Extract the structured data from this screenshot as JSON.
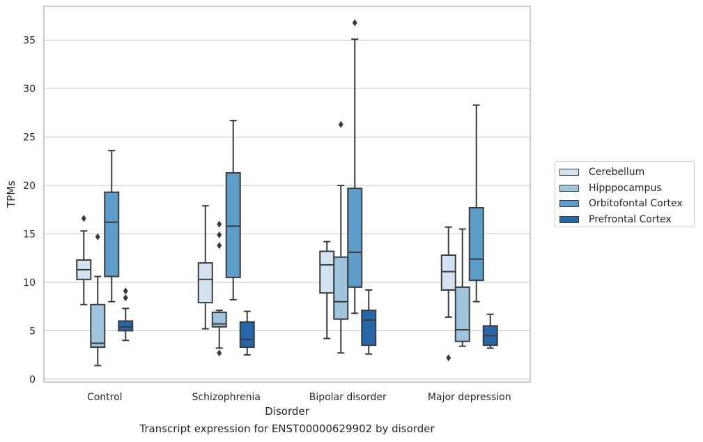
{
  "caption": "Transcript expression for ENST00000629902 by disorder",
  "chart_data": {
    "type": "boxplot",
    "xlabel": "Disorder",
    "ylabel": "TPMs",
    "ylim": [
      -0.3,
      38.5
    ],
    "yticks": [
      0,
      5,
      10,
      15,
      20,
      25,
      30,
      35
    ],
    "grid": "horizontal",
    "legend_position": "right",
    "categories": [
      "Control",
      "Schizophrenia",
      "Bipolar disorder",
      "Major depression"
    ],
    "series": [
      {
        "name": "Cerebellum",
        "color": "#d4e3f2",
        "boxes": [
          {
            "whislo": 7.7,
            "q1": 10.3,
            "med": 11.3,
            "q3": 12.3,
            "whishi": 15.3,
            "fliers": [
              16.6
            ]
          },
          {
            "whislo": 5.2,
            "q1": 7.9,
            "med": 10.3,
            "q3": 12.0,
            "whishi": 17.9,
            "fliers": []
          },
          {
            "whislo": 4.2,
            "q1": 8.9,
            "med": 11.8,
            "q3": 13.2,
            "whishi": 14.2,
            "fliers": []
          },
          {
            "whislo": 6.4,
            "q1": 9.2,
            "med": 11.1,
            "q3": 12.8,
            "whishi": 15.7,
            "fliers": [
              2.2
            ]
          }
        ]
      },
      {
        "name": "Hipppocampus",
        "color": "#9ec4de",
        "boxes": [
          {
            "whislo": 1.4,
            "q1": 3.3,
            "med": 3.7,
            "q3": 7.7,
            "whishi": 10.6,
            "fliers": [
              14.7
            ]
          },
          {
            "whislo": 3.2,
            "q1": 5.4,
            "med": 5.7,
            "q3": 6.9,
            "whishi": 7.1,
            "fliers": [
              2.7,
              13.8,
              14.9,
              16.0
            ]
          },
          {
            "whislo": 2.7,
            "q1": 6.2,
            "med": 8.0,
            "q3": 12.6,
            "whishi": 20.0,
            "fliers": [
              26.3
            ]
          },
          {
            "whislo": 3.4,
            "q1": 3.9,
            "med": 5.1,
            "q3": 9.5,
            "whishi": 15.5,
            "fliers": []
          }
        ]
      },
      {
        "name": "Orbitofontal Cortex",
        "color": "#5d9dc9",
        "boxes": [
          {
            "whislo": 8.0,
            "q1": 10.6,
            "med": 16.2,
            "q3": 19.3,
            "whishi": 23.6,
            "fliers": []
          },
          {
            "whislo": 8.2,
            "q1": 10.5,
            "med": 15.8,
            "q3": 21.3,
            "whishi": 26.7,
            "fliers": []
          },
          {
            "whislo": 6.8,
            "q1": 9.5,
            "med": 13.1,
            "q3": 19.7,
            "whishi": 35.1,
            "fliers": [
              36.8
            ]
          },
          {
            "whislo": 8.0,
            "q1": 10.2,
            "med": 12.4,
            "q3": 17.7,
            "whishi": 28.3,
            "fliers": []
          }
        ]
      },
      {
        "name": "Prefrontal Cortex",
        "color": "#2666a8",
        "boxes": [
          {
            "whislo": 4.0,
            "q1": 5.0,
            "med": 5.4,
            "q3": 6.0,
            "whishi": 7.3,
            "fliers": [
              8.4,
              9.1
            ]
          },
          {
            "whislo": 2.5,
            "q1": 3.3,
            "med": 4.1,
            "q3": 5.9,
            "whishi": 7.0,
            "fliers": []
          },
          {
            "whislo": 2.6,
            "q1": 3.5,
            "med": 6.1,
            "q3": 7.1,
            "whishi": 9.2,
            "fliers": []
          },
          {
            "whislo": 3.2,
            "q1": 3.5,
            "med": 4.5,
            "q3": 5.5,
            "whishi": 6.7,
            "fliers": []
          }
        ]
      }
    ]
  }
}
